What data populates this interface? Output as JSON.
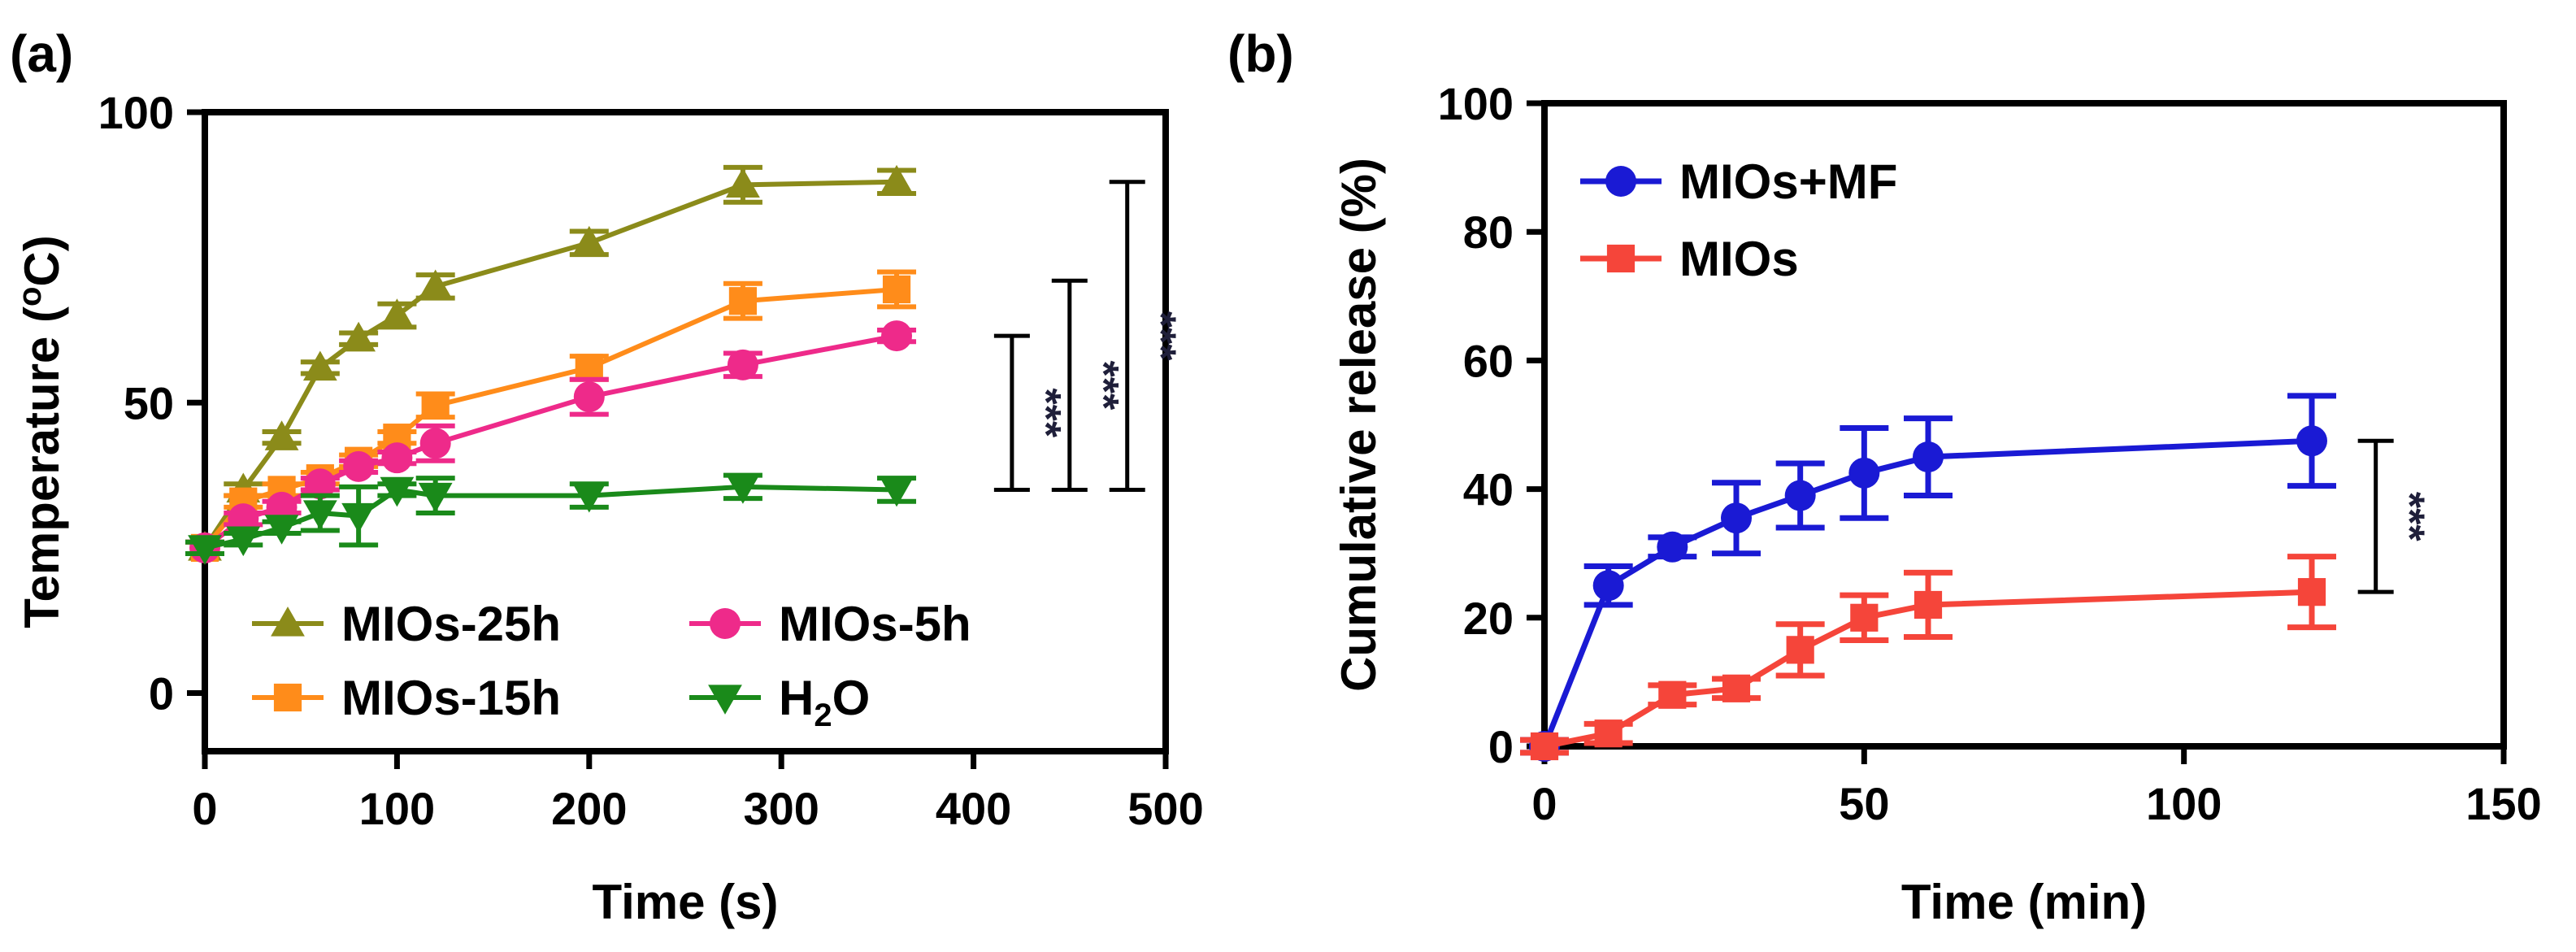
{
  "chart_data": [
    {
      "panel_label": "(a)",
      "type": "line",
      "xlabel": "Time (s)",
      "ylabel": "Temperature (",
      "ylabel_sup": "o",
      "ylabel_tail": "C)",
      "xlim": [
        0,
        500
      ],
      "ylim": [
        -10,
        100
      ],
      "x_ticks": [
        0,
        100,
        200,
        300,
        400,
        500
      ],
      "y_ticks": [
        0,
        50,
        100
      ],
      "x_tick_labels": [
        "0",
        "100",
        "200",
        "300",
        "400",
        "500"
      ],
      "y_tick_labels": [
        "0",
        "50",
        "100"
      ],
      "legend_position": "bottom",
      "series": [
        {
          "name": "MIOs-25h",
          "color": "#8b8b1a",
          "marker": "triangle-up",
          "x": [
            0,
            20,
            40,
            60,
            80,
            100,
            120,
            200,
            280,
            360
          ],
          "y": [
            25,
            35,
            44,
            56,
            61,
            65,
            70,
            77.5,
            87.5,
            88
          ],
          "err": [
            1,
            1,
            1,
            1,
            1,
            2,
            2,
            2,
            3,
            2
          ]
        },
        {
          "name": "MIOs-15h",
          "color": "#ff8c1a",
          "marker": "square",
          "x": [
            0,
            20,
            40,
            60,
            80,
            100,
            120,
            200,
            280,
            360
          ],
          "y": [
            25,
            33,
            35,
            37,
            40,
            44,
            49.5,
            56,
            67.5,
            69.5
          ],
          "err": [
            1,
            1,
            1,
            1,
            1,
            1,
            2,
            2,
            3,
            3
          ]
        },
        {
          "name": "MIOs-5h",
          "color": "#ee2a8a",
          "marker": "circle",
          "x": [
            0,
            20,
            40,
            60,
            80,
            100,
            120,
            200,
            280,
            360
          ],
          "y": [
            25,
            30,
            32,
            36,
            39,
            40.5,
            43,
            51,
            56.5,
            61.5
          ],
          "err": [
            1,
            1,
            1,
            1,
            1,
            1,
            3,
            3,
            2,
            1
          ]
        },
        {
          "name": "H",
          "name_sub": "2",
          "name_tail": "O",
          "color": "#1a8a1a",
          "marker": "triangle-down",
          "x": [
            0,
            20,
            40,
            60,
            80,
            100,
            120,
            200,
            280,
            360
          ],
          "y": [
            25,
            26.5,
            28.5,
            31,
            30.5,
            35,
            34,
            34,
            35.5,
            35
          ],
          "err": [
            1,
            1,
            1,
            3,
            5,
            1,
            3,
            2,
            2,
            2
          ]
        }
      ],
      "annotations": [
        {
          "text": "***",
          "y_low": 35,
          "y_high": 61.5,
          "x": 420
        },
        {
          "text": "***",
          "y_low": 35,
          "y_high": 71,
          "x": 450
        },
        {
          "text": "***",
          "y_low": 35,
          "y_high": 88,
          "x": 480
        }
      ]
    },
    {
      "panel_label": "(b)",
      "type": "line",
      "xlabel": "Time (min)",
      "ylabel": "Cumulative release (%)",
      "xlim": [
        0,
        150
      ],
      "ylim": [
        0,
        100
      ],
      "x_ticks": [
        0,
        50,
        100,
        150
      ],
      "y_ticks": [
        0,
        20,
        40,
        60,
        80,
        100
      ],
      "x_tick_labels": [
        "0",
        "50",
        "100",
        "150"
      ],
      "y_tick_labels": [
        "0",
        "20",
        "40",
        "60",
        "80",
        "100"
      ],
      "legend_position": "top-left",
      "series": [
        {
          "name": "MIOs+MF",
          "color": "#1a1ad4",
          "marker": "circle",
          "x": [
            0,
            10,
            20,
            30,
            40,
            50,
            60,
            120
          ],
          "y": [
            0,
            25,
            31,
            35.5,
            39,
            42.5,
            45,
            47.5
          ],
          "err": [
            1,
            3,
            1.5,
            5.5,
            5,
            7,
            6,
            7
          ]
        },
        {
          "name": "MIOs",
          "color": "#f5453a",
          "marker": "square",
          "x": [
            0,
            10,
            20,
            30,
            40,
            50,
            60,
            120
          ],
          "y": [
            0,
            2,
            8,
            9,
            15,
            20,
            22,
            24
          ],
          "err": [
            1,
            1.5,
            1.5,
            1.5,
            4,
            3.5,
            5,
            5.5
          ]
        }
      ],
      "annotations": [
        {
          "text": "***",
          "y_low": 24,
          "y_high": 47.5,
          "x": 130
        }
      ]
    }
  ]
}
